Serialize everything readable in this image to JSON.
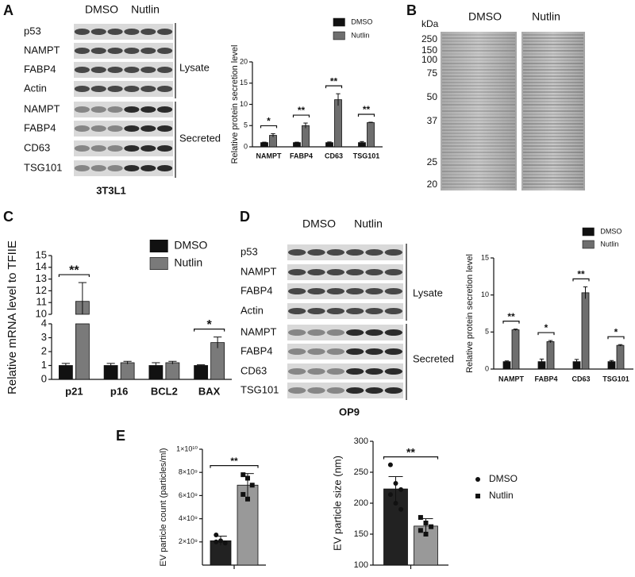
{
  "panels": {
    "A": {
      "letter": "A",
      "groups": [
        "DMSO",
        "Nutlin"
      ],
      "rows": [
        "p53",
        "NAMPT",
        "FABP4",
        "Actin",
        "NAMPT",
        "FABP4",
        "CD63",
        "TSG101"
      ],
      "sections": [
        "Lysate",
        "Secreted"
      ],
      "cell_line": "3T3L1"
    },
    "B": {
      "letter": "B",
      "unit": "kDa",
      "groups": [
        "DMSO",
        "Nutlin"
      ],
      "markers": [
        250,
        150,
        100,
        75,
        50,
        37,
        25,
        20
      ]
    },
    "C": {
      "letter": "C"
    },
    "D": {
      "letter": "D",
      "groups": [
        "DMSO",
        "Nutlin"
      ],
      "rows": [
        "p53",
        "NAMPT",
        "FABP4",
        "Actin",
        "NAMPT",
        "FABP4",
        "CD63",
        "TSG101"
      ],
      "sections": [
        "Lysate",
        "Secreted"
      ],
      "cell_line": "OP9"
    },
    "E": {
      "letter": "E"
    }
  },
  "chart_data": [
    {
      "type": "bar",
      "ylabel": "Relative protein secretion level",
      "categories": [
        "NAMPT",
        "FABP4",
        "CD63",
        "TSG101"
      ],
      "series": [
        {
          "name": "DMSO",
          "color": "#111111",
          "values": [
            1,
            1,
            1,
            1
          ],
          "errors": [
            0.1,
            0.1,
            0.15,
            0.25
          ]
        },
        {
          "name": "Nutlin",
          "color": "#6e6e6e",
          "values": [
            2.7,
            5,
            11.1,
            5.7
          ],
          "errors": [
            0.4,
            0.6,
            1.4,
            0.1
          ]
        }
      ],
      "significance": [
        "*",
        "**",
        "**",
        "**"
      ],
      "ylim": [
        0,
        20
      ],
      "yticks": [
        0,
        5,
        10,
        15,
        20
      ],
      "legend": "top-right"
    },
    {
      "type": "bar",
      "ylabel": "Relative mRNA level to TFIIE",
      "categories": [
        "p21",
        "p16",
        "BCL2",
        "BAX"
      ],
      "series": [
        {
          "name": "DMSO",
          "color": "#111111",
          "values": [
            1,
            1,
            1,
            1
          ],
          "errors": [
            0.15,
            0.15,
            0.2,
            0.05
          ]
        },
        {
          "name": "Nutlin",
          "color": "#7a7a7a",
          "values": [
            11.1,
            1.2,
            1.2,
            2.65
          ],
          "errors": [
            1.6,
            0.1,
            0.1,
            0.4
          ]
        }
      ],
      "significance": [
        "**",
        null,
        null,
        "*"
      ],
      "ylim": [
        0,
        15
      ],
      "ybreak": [
        4,
        10
      ],
      "yticks": [
        0,
        1,
        2,
        3,
        4,
        10,
        11,
        12,
        13,
        14,
        15
      ],
      "legend": "top-right"
    },
    {
      "type": "bar",
      "ylabel": "Relative protein secretion level",
      "categories": [
        "NAMPT",
        "FABP4",
        "CD63",
        "TSG101"
      ],
      "series": [
        {
          "name": "DMSO",
          "color": "#111111",
          "values": [
            1,
            1,
            1,
            1
          ],
          "errors": [
            0.1,
            0.35,
            0.3,
            0.15
          ]
        },
        {
          "name": "Nutlin",
          "color": "#6e6e6e",
          "values": [
            5.3,
            3.7,
            10.3,
            3.2
          ],
          "errors": [
            0.1,
            0.15,
            0.8,
            0.1
          ]
        }
      ],
      "significance": [
        "**",
        "*",
        "**",
        "*"
      ],
      "ylim": [
        0,
        15
      ],
      "yticks": [
        0,
        5,
        10,
        15
      ],
      "legend": "top-right"
    },
    {
      "type": "bar",
      "ylabel": "EV particle count (particles/ml)",
      "categories": [
        null
      ],
      "series": [
        {
          "color": "#222222",
          "marker": "circle",
          "values": [
            2100000000
          ],
          "errors": [
            400000000
          ],
          "points": [
            [
              2600000000,
              2100000000,
              1900000000,
              2000000000
            ]
          ]
        },
        {
          "color": "#999999",
          "marker": "square",
          "values": [
            6900000000
          ],
          "errors": [
            1000000000
          ],
          "points": [
            [
              7800000000,
              7500000000,
              6900000000,
              6100000000,
              5700000000
            ]
          ]
        }
      ],
      "significance": [
        "**"
      ],
      "ylim": [
        0,
        10000000000
      ],
      "yticks": [
        {
          "value": 2000000000,
          "label": "2×10⁹"
        },
        {
          "value": 4000000000,
          "label": "4×10⁹"
        },
        {
          "value": 6000000000,
          "label": "6×10⁹"
        },
        {
          "value": 8000000000,
          "label": "8×10⁹"
        },
        {
          "value": 10000000000,
          "label": "1×10¹⁰"
        }
      ]
    },
    {
      "type": "bar",
      "ylabel": "EV particle size (nm)",
      "categories": [
        null
      ],
      "series": [
        {
          "name": "DMSO",
          "color": "#222222",
          "marker": "circle",
          "values": [
            223
          ],
          "errors": [
            20
          ],
          "points": [
            [
              262,
              232,
              222,
              214,
              200,
              190
            ]
          ]
        },
        {
          "name": "Nutlin",
          "color": "#999999",
          "marker": "square",
          "values": [
            163
          ],
          "errors": [
            12
          ],
          "points": [
            [
              177,
              168,
              162,
              156,
              150
            ]
          ]
        }
      ],
      "significance": [
        "**"
      ],
      "ylim": [
        100,
        300
      ],
      "yticks": [
        100,
        150,
        200,
        250,
        300
      ],
      "legend": "right"
    }
  ]
}
